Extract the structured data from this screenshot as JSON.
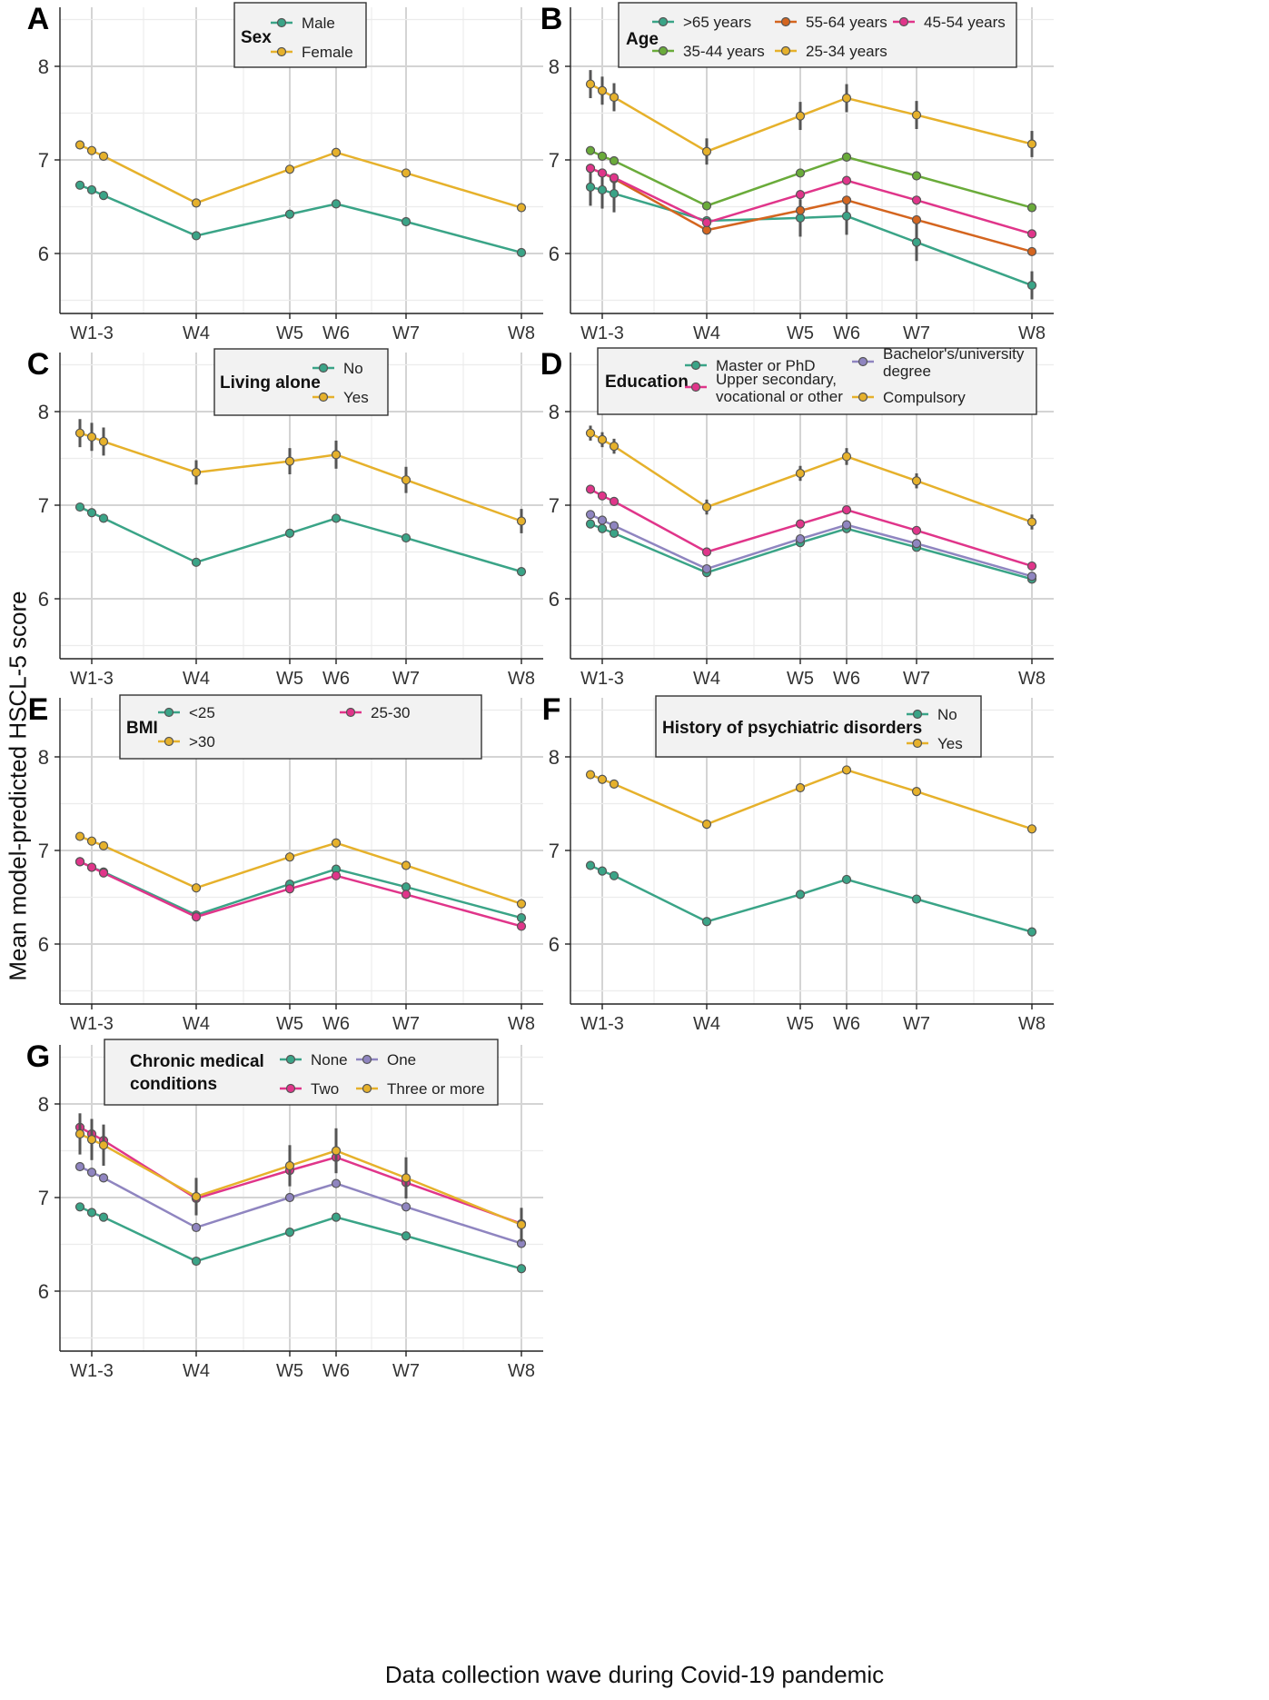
{
  "figure": {
    "ylabel": "Mean model-predicted HSCL-5 score",
    "xlabel": "Data collection wave during Covid-19 pandemic"
  },
  "colors": {
    "green": "#3aa487",
    "orange": "#d4651f",
    "pink": "#e0358a",
    "lime": "#6aab3a",
    "yellow": "#e6b12b",
    "purple": "#8f85c0"
  },
  "chart_data": [
    {
      "type": "line",
      "panel": "A",
      "legend_title": [
        "Sex"
      ],
      "x": [
        "W1",
        "W2",
        "W3",
        "W4",
        "W5",
        "W6",
        "W7",
        "W8"
      ],
      "x_ticks": [
        "W1-3",
        "W4",
        "W5",
        "W6",
        "W7",
        "W8"
      ],
      "ylim": [
        5.45,
        8.6
      ],
      "yticks": [
        6,
        7,
        8
      ],
      "series": [
        {
          "name": "Male",
          "color": "green",
          "values": [
            6.73,
            6.68,
            6.62,
            6.19,
            6.42,
            6.53,
            6.34,
            6.01
          ]
        },
        {
          "name": "Female",
          "color": "yellow",
          "values": [
            7.16,
            7.1,
            7.04,
            6.54,
            6.9,
            7.08,
            6.86,
            6.49
          ]
        }
      ]
    },
    {
      "type": "line",
      "panel": "B",
      "legend_title": [
        "Age"
      ],
      "x": [
        "W1",
        "W2",
        "W3",
        "W4",
        "W5",
        "W6",
        "W7",
        "W8"
      ],
      "x_ticks": [
        "W1-3",
        "W4",
        "W5",
        "W6",
        "W7",
        "W8"
      ],
      "ylim": [
        5.45,
        8.6
      ],
      "yticks": [
        6,
        7,
        8
      ],
      "series": [
        {
          "name": ">65 years",
          "color": "green",
          "values": [
            6.71,
            6.68,
            6.64,
            6.35,
            6.38,
            6.4,
            6.12,
            5.66
          ],
          "errors": [
            0.2,
            0.2,
            0.2,
            0.0,
            0.2,
            0.2,
            0.2,
            0.15
          ]
        },
        {
          "name": "55-64 years",
          "color": "orange",
          "values": [
            6.91,
            6.86,
            6.8,
            6.25,
            6.46,
            6.57,
            6.36,
            6.02
          ]
        },
        {
          "name": "45-54 years",
          "color": "pink",
          "values": [
            6.91,
            6.86,
            6.81,
            6.33,
            6.63,
            6.78,
            6.57,
            6.21
          ]
        },
        {
          "name": "35-44 years",
          "color": "lime",
          "values": [
            7.1,
            7.04,
            6.99,
            6.51,
            6.86,
            7.03,
            6.83,
            6.49
          ]
        },
        {
          "name": "25-34 years",
          "color": "yellow",
          "values": [
            7.81,
            7.74,
            7.67,
            7.09,
            7.47,
            7.66,
            7.48,
            7.17
          ],
          "errors": [
            0.15,
            0.15,
            0.15,
            0.14,
            0.15,
            0.15,
            0.15,
            0.14
          ]
        }
      ]
    },
    {
      "type": "line",
      "panel": "C",
      "legend_title": [
        "Living alone"
      ],
      "x": [
        "W1",
        "W2",
        "W3",
        "W4",
        "W5",
        "W6",
        "W7",
        "W8"
      ],
      "x_ticks": [
        "W1-3",
        "W4",
        "W5",
        "W6",
        "W7",
        "W8"
      ],
      "ylim": [
        5.45,
        8.6
      ],
      "yticks": [
        6,
        7,
        8
      ],
      "series": [
        {
          "name": "No",
          "color": "green",
          "values": [
            6.98,
            6.92,
            6.86,
            6.39,
            6.7,
            6.86,
            6.65,
            6.29
          ]
        },
        {
          "name": "Yes",
          "color": "yellow",
          "values": [
            7.77,
            7.73,
            7.68,
            7.35,
            7.47,
            7.54,
            7.27,
            6.83
          ],
          "errors": [
            0.15,
            0.15,
            0.15,
            0.13,
            0.14,
            0.15,
            0.14,
            0.13
          ]
        }
      ]
    },
    {
      "type": "line",
      "panel": "D",
      "legend_title": [
        "Education"
      ],
      "x": [
        "W1",
        "W2",
        "W3",
        "W4",
        "W5",
        "W6",
        "W7",
        "W8"
      ],
      "x_ticks": [
        "W1-3",
        "W4",
        "W5",
        "W6",
        "W7",
        "W8"
      ],
      "ylim": [
        5.45,
        8.6
      ],
      "yticks": [
        6,
        7,
        8
      ],
      "series": [
        {
          "name": "Master or PhD",
          "color": "green",
          "values": [
            6.8,
            6.75,
            6.7,
            6.28,
            6.6,
            6.75,
            6.55,
            6.21
          ]
        },
        {
          "name": "Upper secondary, vocational or other",
          "color": "pink",
          "values": [
            7.17,
            7.1,
            7.04,
            6.5,
            6.8,
            6.95,
            6.73,
            6.35
          ]
        },
        {
          "name": "Bachelor's/university degree",
          "color": "purple",
          "values": [
            6.9,
            6.84,
            6.78,
            6.32,
            6.64,
            6.79,
            6.59,
            6.24
          ]
        },
        {
          "name": "Compulsory",
          "color": "yellow",
          "values": [
            7.77,
            7.7,
            7.63,
            6.98,
            7.34,
            7.52,
            7.26,
            6.82
          ],
          "errors": [
            0.08,
            0.08,
            0.08,
            0.08,
            0.08,
            0.09,
            0.08,
            0.08
          ]
        }
      ]
    },
    {
      "type": "line",
      "panel": "E",
      "legend_title": [
        "BMI"
      ],
      "x": [
        "W1",
        "W2",
        "W3",
        "W4",
        "W5",
        "W6",
        "W7",
        "W8"
      ],
      "x_ticks": [
        "W1-3",
        "W4",
        "W5",
        "W6",
        "W7",
        "W8"
      ],
      "ylim": [
        5.45,
        8.6
      ],
      "yticks": [
        6,
        7,
        8
      ],
      "series": [
        {
          "name": "<25",
          "color": "green",
          "values": [
            6.88,
            6.82,
            6.77,
            6.31,
            6.64,
            6.8,
            6.61,
            6.28
          ]
        },
        {
          "name": "25-30",
          "color": "pink",
          "values": [
            6.88,
            6.82,
            6.76,
            6.29,
            6.59,
            6.73,
            6.53,
            6.19
          ]
        },
        {
          "name": ">30",
          "color": "yellow",
          "values": [
            7.15,
            7.1,
            7.05,
            6.6,
            6.93,
            7.08,
            6.84,
            6.43
          ]
        }
      ]
    },
    {
      "type": "line",
      "panel": "F",
      "legend_title": [
        "History of psychiatric disorders"
      ],
      "x": [
        "W1",
        "W2",
        "W3",
        "W4",
        "W5",
        "W6",
        "W7",
        "W8"
      ],
      "x_ticks": [
        "W1-3",
        "W4",
        "W5",
        "W6",
        "W7",
        "W8"
      ],
      "ylim": [
        5.45,
        8.6
      ],
      "yticks": [
        6,
        7,
        8
      ],
      "series": [
        {
          "name": "No",
          "color": "green",
          "values": [
            6.84,
            6.78,
            6.73,
            6.24,
            6.53,
            6.69,
            6.48,
            6.13
          ]
        },
        {
          "name": "Yes",
          "color": "yellow",
          "values": [
            7.81,
            7.76,
            7.71,
            7.28,
            7.67,
            7.86,
            7.63,
            7.23
          ]
        }
      ]
    },
    {
      "type": "line",
      "panel": "G",
      "legend_title": [
        "Chronic medical",
        "conditions"
      ],
      "x": [
        "W1",
        "W2",
        "W3",
        "W4",
        "W5",
        "W6",
        "W7",
        "W8"
      ],
      "x_ticks": [
        "W1-3",
        "W4",
        "W5",
        "W6",
        "W7",
        "W8"
      ],
      "ylim": [
        5.45,
        8.6
      ],
      "yticks": [
        6,
        7,
        8
      ],
      "series": [
        {
          "name": "None",
          "color": "green",
          "values": [
            6.9,
            6.84,
            6.79,
            6.32,
            6.63,
            6.79,
            6.59,
            6.24
          ]
        },
        {
          "name": "Two",
          "color": "pink",
          "values": [
            7.75,
            7.68,
            7.61,
            6.99,
            7.29,
            7.43,
            7.16,
            6.72
          ]
        },
        {
          "name": "One",
          "color": "purple",
          "values": [
            7.33,
            7.27,
            7.21,
            6.68,
            7.0,
            7.15,
            6.9,
            6.51
          ]
        },
        {
          "name": "Three or more",
          "color": "yellow",
          "values": [
            7.68,
            7.62,
            7.56,
            7.01,
            7.34,
            7.5,
            7.21,
            6.71
          ],
          "errors": [
            0.22,
            0.22,
            0.22,
            0.2,
            0.22,
            0.24,
            0.22,
            0.18
          ]
        }
      ]
    }
  ]
}
